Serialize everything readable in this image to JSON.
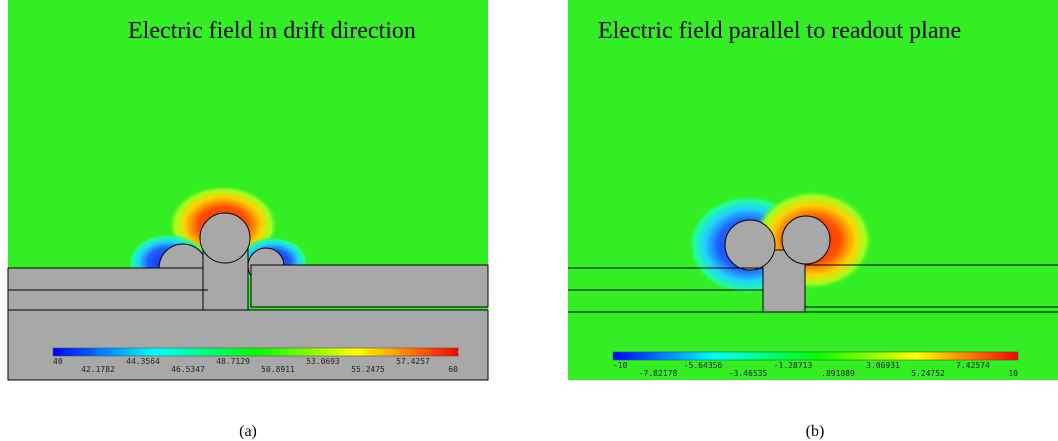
{
  "panels": [
    {
      "title": "Electric field in drift direction",
      "colorbar": {
        "top_labels": [
          "40",
          "44.3564",
          "48.7129",
          "53.0693",
          "57.4257"
        ],
        "bottom_labels": [
          "42.1782",
          "46.5347",
          "50.8911",
          "55.2475",
          "60"
        ]
      },
      "caption": "(a)"
    },
    {
      "title": "Electric field parallel to readout plane",
      "colorbar": {
        "top_labels": [
          "-10",
          "-5.64356",
          "-1.28713",
          "3.06931",
          "7.42574"
        ],
        "bottom_labels": [
          "-7.82178",
          "-3.46535",
          ".891089",
          "5.24752",
          "10"
        ]
      },
      "caption": "(b)"
    }
  ]
}
